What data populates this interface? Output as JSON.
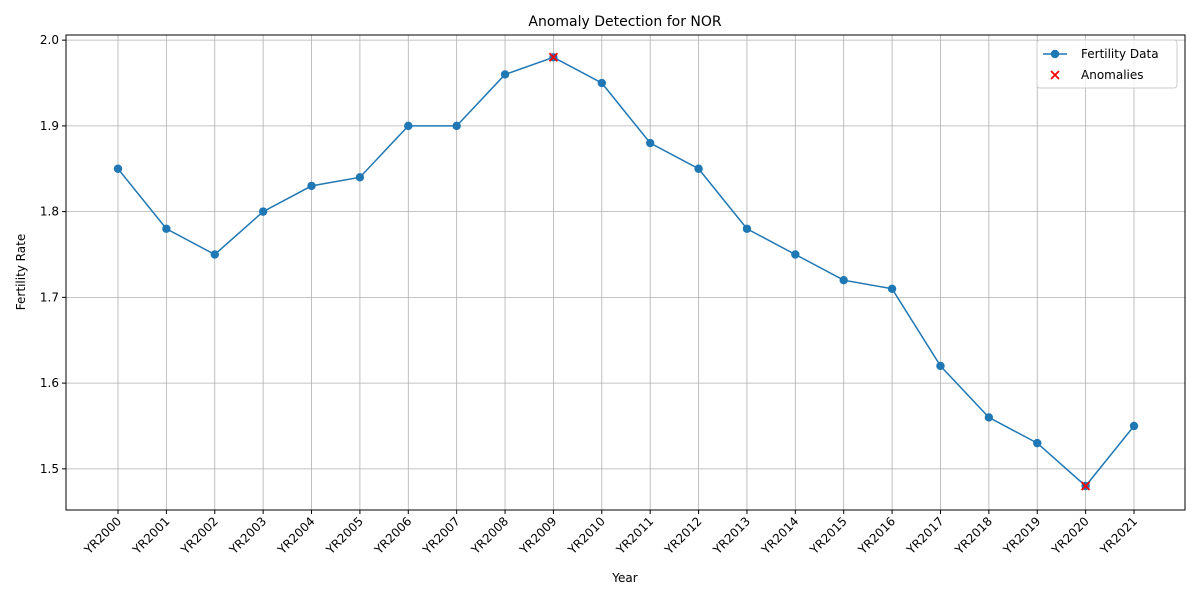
{
  "chart_data": {
    "type": "line",
    "title": "Anomaly Detection for NOR",
    "xlabel": "Year",
    "ylabel": "Fertility Rate",
    "categories": [
      "YR2000",
      "YR2001",
      "YR2002",
      "YR2003",
      "YR2004",
      "YR2005",
      "YR2006",
      "YR2007",
      "YR2008",
      "YR2009",
      "YR2010",
      "YR2011",
      "YR2012",
      "YR2013",
      "YR2014",
      "YR2015",
      "YR2016",
      "YR2017",
      "YR2018",
      "YR2019",
      "YR2020",
      "YR2021"
    ],
    "series": [
      {
        "name": "Fertility Data",
        "color": "#1f77b4",
        "marker": "o",
        "values": [
          1.85,
          1.78,
          1.75,
          1.8,
          1.83,
          1.84,
          1.9,
          1.9,
          1.96,
          1.98,
          1.95,
          1.88,
          1.85,
          1.78,
          1.75,
          1.72,
          1.71,
          1.62,
          1.56,
          1.53,
          1.48,
          1.55
        ]
      },
      {
        "name": "Anomalies",
        "color": "#ff0000",
        "marker": "x",
        "values": [
          null,
          null,
          null,
          null,
          null,
          null,
          null,
          null,
          null,
          1.98,
          null,
          null,
          null,
          null,
          null,
          null,
          null,
          null,
          null,
          null,
          1.48,
          null
        ]
      }
    ],
    "ylim": [
      1.452,
      2.006
    ],
    "yticks": [
      1.5,
      1.6,
      1.7,
      1.8,
      1.9,
      {
        "value": 2,
        "label": "2.0"
      }
    ],
    "grid": true,
    "legend": "upper right"
  }
}
